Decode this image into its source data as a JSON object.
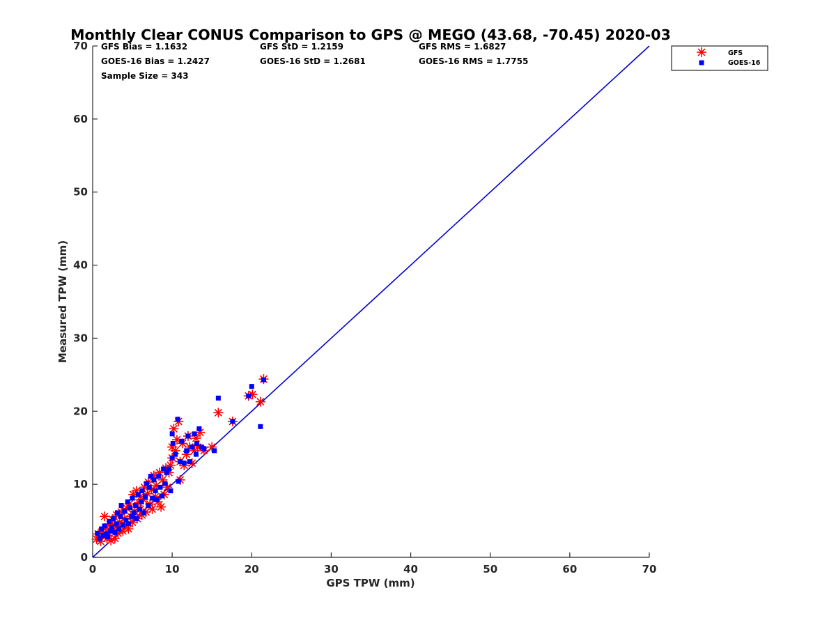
{
  "chart_data": {
    "type": "scatter",
    "title": "Monthly Clear CONUS Comparison to GPS @ MEGO (43.68, -70.45) 2020-03",
    "xlabel": "GPS TPW (mm)",
    "ylabel": "Measured TPW (mm)",
    "xlim": [
      0,
      70
    ],
    "ylim": [
      0,
      70
    ],
    "xticks": [
      "0",
      "10",
      "20",
      "30",
      "40",
      "50",
      "60",
      "70"
    ],
    "yticks": [
      "0",
      "10",
      "20",
      "30",
      "40",
      "50",
      "60",
      "70"
    ],
    "grid": false,
    "legend_position": "outside top-right",
    "stats": {
      "gfs_bias": "GFS Bias = 1.1632",
      "goes_bias": "GOES-16 Bias = 1.2427",
      "sample_size": "Sample Size = 343",
      "gfs_std": "GFS StD = 1.2159",
      "goes_std": "GOES-16 StD = 1.2681",
      "gfs_rms": "GFS RMS = 1.6827",
      "goes_rms": "GOES-16 RMS = 1.7755"
    },
    "reference_line": {
      "from": [
        0,
        0
      ],
      "to": [
        70,
        70
      ],
      "color": "#0000cc"
    },
    "series": [
      {
        "name": "GFS",
        "marker": "asterisk",
        "color": "#ff0000",
        "points": [
          [
            0.5,
            2.5
          ],
          [
            0.7,
            3.2
          ],
          [
            1.0,
            2.2
          ],
          [
            1.2,
            3.5
          ],
          [
            1.5,
            5.6
          ],
          [
            1.6,
            4.0
          ],
          [
            1.8,
            2.6
          ],
          [
            2.0,
            3.3
          ],
          [
            2.2,
            4.5
          ],
          [
            2.3,
            2.3
          ],
          [
            2.5,
            5.2
          ],
          [
            2.6,
            3.8
          ],
          [
            2.8,
            2.6
          ],
          [
            3.0,
            4.2
          ],
          [
            3.0,
            5.8
          ],
          [
            3.2,
            3.3
          ],
          [
            3.4,
            4.8
          ],
          [
            3.6,
            6.2
          ],
          [
            3.8,
            3.6
          ],
          [
            4.0,
            5.3
          ],
          [
            4.1,
            4.4
          ],
          [
            4.3,
            6.7
          ],
          [
            4.5,
            3.9
          ],
          [
            4.6,
            7.3
          ],
          [
            4.8,
            5.6
          ],
          [
            5.0,
            4.8
          ],
          [
            5.1,
            8.6
          ],
          [
            5.3,
            6.3
          ],
          [
            5.5,
            9.1
          ],
          [
            5.6,
            5.3
          ],
          [
            5.8,
            7.5
          ],
          [
            6.0,
            6.6
          ],
          [
            6.0,
            8.3
          ],
          [
            6.2,
            5.8
          ],
          [
            6.4,
            7.9
          ],
          [
            6.5,
            9.6
          ],
          [
            6.7,
            6.2
          ],
          [
            6.9,
            8.7
          ],
          [
            7.0,
            10.3
          ],
          [
            7.2,
            7.3
          ],
          [
            7.4,
            9.3
          ],
          [
            7.5,
            6.6
          ],
          [
            7.7,
            11.2
          ],
          [
            7.9,
            8.3
          ],
          [
            8.0,
            9.8
          ],
          [
            8.2,
            7.6
          ],
          [
            8.4,
            11.6
          ],
          [
            8.6,
            6.9
          ],
          [
            8.8,
            10.6
          ],
          [
            9.0,
            8.6
          ],
          [
            9.2,
            12.2
          ],
          [
            9.4,
            9.6
          ],
          [
            9.6,
            11.6
          ],
          [
            9.8,
            12.6
          ],
          [
            10.0,
            13.6
          ],
          [
            10.0,
            15.1
          ],
          [
            10.2,
            17.6
          ],
          [
            10.4,
            14.6
          ],
          [
            10.6,
            16.1
          ],
          [
            10.8,
            18.6
          ],
          [
            11.0,
            13.1
          ],
          [
            11.0,
            10.6
          ],
          [
            11.3,
            15.6
          ],
          [
            11.5,
            12.6
          ],
          [
            11.8,
            14.1
          ],
          [
            12.0,
            16.6
          ],
          [
            12.2,
            15.1
          ],
          [
            12.5,
            12.9
          ],
          [
            12.8,
            14.6
          ],
          [
            13.0,
            16.3
          ],
          [
            13.2,
            15.1
          ],
          [
            13.5,
            17.1
          ],
          [
            14.0,
            14.6
          ],
          [
            15.0,
            15.1
          ],
          [
            15.8,
            19.8
          ],
          [
            17.6,
            18.6
          ],
          [
            19.6,
            22.1
          ],
          [
            20.1,
            22.3
          ],
          [
            21.1,
            21.3
          ],
          [
            21.5,
            24.4
          ]
        ]
      },
      {
        "name": "GOES-16",
        "marker": "square",
        "color": "#0000ff",
        "points": [
          [
            0.6,
            3.3
          ],
          [
            0.9,
            2.6
          ],
          [
            1.1,
            3.9
          ],
          [
            1.3,
            3.0
          ],
          [
            1.5,
            4.3
          ],
          [
            1.7,
            3.2
          ],
          [
            1.9,
            2.8
          ],
          [
            2.1,
            4.9
          ],
          [
            2.2,
            3.6
          ],
          [
            2.4,
            4.1
          ],
          [
            2.6,
            5.3
          ],
          [
            2.8,
            3.4
          ],
          [
            3.0,
            4.6
          ],
          [
            3.1,
            6.1
          ],
          [
            3.3,
            3.9
          ],
          [
            3.5,
            5.6
          ],
          [
            3.6,
            7.1
          ],
          [
            3.8,
            4.4
          ],
          [
            4.0,
            6.3
          ],
          [
            4.2,
            5.1
          ],
          [
            4.4,
            7.6
          ],
          [
            4.5,
            4.6
          ],
          [
            4.7,
            6.8
          ],
          [
            4.9,
            5.6
          ],
          [
            5.0,
            8.1
          ],
          [
            5.2,
            6.1
          ],
          [
            5.4,
            7.1
          ],
          [
            5.5,
            5.3
          ],
          [
            5.7,
            8.6
          ],
          [
            5.9,
            6.6
          ],
          [
            6.1,
            7.6
          ],
          [
            6.2,
            9.1
          ],
          [
            6.4,
            6.1
          ],
          [
            6.6,
            8.3
          ],
          [
            6.8,
            10.1
          ],
          [
            7.0,
            7.1
          ],
          [
            7.1,
            9.6
          ],
          [
            7.3,
            11.1
          ],
          [
            7.5,
            8.1
          ],
          [
            7.7,
            10.6
          ],
          [
            7.9,
            9.1
          ],
          [
            8.1,
            7.9
          ],
          [
            8.3,
            11.1
          ],
          [
            8.5,
            9.6
          ],
          [
            8.7,
            8.4
          ],
          [
            8.9,
            12.1
          ],
          [
            9.1,
            10.1
          ],
          [
            9.3,
            11.6
          ],
          [
            9.6,
            12.1
          ],
          [
            9.8,
            9.1
          ],
          [
            10.0,
            13.6
          ],
          [
            10.0,
            16.9
          ],
          [
            10.1,
            15.6
          ],
          [
            10.4,
            14.1
          ],
          [
            10.7,
            18.9
          ],
          [
            10.8,
            10.4
          ],
          [
            11.0,
            13.1
          ],
          [
            11.2,
            15.9
          ],
          [
            11.5,
            12.9
          ],
          [
            11.8,
            14.6
          ],
          [
            12.0,
            16.6
          ],
          [
            12.2,
            13.1
          ],
          [
            12.5,
            15.1
          ],
          [
            12.8,
            16.9
          ],
          [
            13.0,
            14.1
          ],
          [
            13.1,
            15.6
          ],
          [
            13.4,
            17.6
          ],
          [
            13.7,
            15.1
          ],
          [
            14.0,
            14.9
          ],
          [
            15.3,
            14.6
          ],
          [
            15.8,
            21.8
          ],
          [
            17.6,
            18.6
          ],
          [
            19.6,
            22.1
          ],
          [
            20.0,
            23.4
          ],
          [
            21.1,
            17.9
          ],
          [
            21.5,
            24.3
          ]
        ]
      }
    ]
  }
}
